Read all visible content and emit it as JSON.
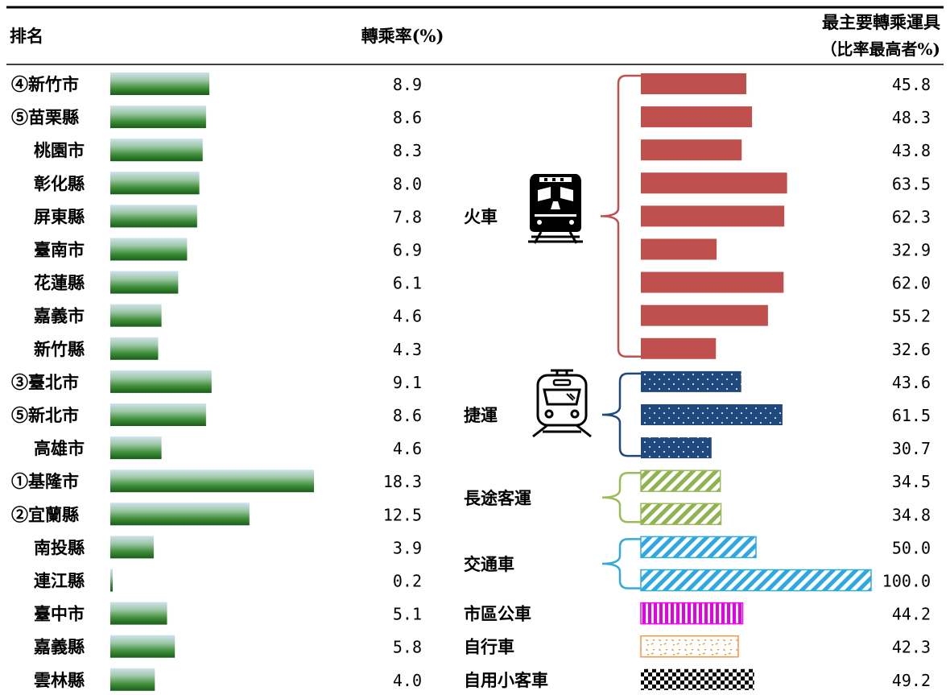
{
  "header": {
    "rank": "排名",
    "rate": "轉乘率(%)",
    "mode_line1": "最主要轉乘運具",
    "mode_line2": "（比率最高者%)"
  },
  "colors": {
    "train": "#c0504d",
    "mrt": "#1f497d",
    "bus": "#9bbb59",
    "shuttle": "#33aadd",
    "city_bus": "#ff00ff",
    "bicycle": "#f79646",
    "car": "#000000",
    "rate_bar_top": "#c7dde8",
    "rate_bar_bottom": "#1e6b1e"
  },
  "chart_data": [
    {
      "type": "bar",
      "orientation": "horizontal",
      "title": "",
      "ylabel": "排名",
      "xlabel": "轉乘率(%)",
      "categories": [
        "④新竹市",
        "⑤苗栗縣",
        "桃園市",
        "彰化縣",
        "屏東縣",
        "臺南市",
        "花蓮縣",
        "嘉義市",
        "新竹縣",
        "③臺北市",
        "⑤新北市",
        "高雄市",
        "①基隆市",
        "②宜蘭縣",
        "南投縣",
        "連江縣",
        "臺中市",
        "嘉義縣",
        "雲林縣"
      ],
      "values": [
        8.9,
        8.6,
        8.3,
        8.0,
        7.8,
        6.9,
        6.1,
        4.6,
        4.3,
        9.1,
        8.6,
        4.6,
        18.3,
        12.5,
        3.9,
        0.2,
        5.1,
        5.8,
        4.0
      ],
      "value_labels": [
        "8.9",
        "8.6",
        "8.3",
        "8.0",
        "7.8",
        "6.9",
        "6.1",
        "4.6",
        "4.3",
        "9.1",
        "8.6",
        "4.6",
        "18.3",
        "12.5",
        "3.9",
        "0.2",
        "5.1",
        "5.8",
        "4.0"
      ],
      "xlim": [
        0,
        18.3
      ],
      "grid": false
    },
    {
      "type": "bar",
      "orientation": "horizontal",
      "title": "最主要轉乘運具（比率最高者%)",
      "values": [
        45.8,
        48.3,
        43.8,
        63.5,
        62.3,
        32.9,
        62.0,
        55.2,
        32.6,
        43.6,
        61.5,
        30.7,
        34.5,
        34.8,
        50.0,
        100.0,
        44.2,
        42.3,
        49.2
      ],
      "value_labels": [
        "45.8",
        "48.3",
        "43.8",
        "63.5",
        "62.3",
        "32.9",
        "62.0",
        "55.2",
        "32.6",
        "43.6",
        "61.5",
        "30.7",
        "34.5",
        "34.8",
        "50.0",
        "100.0",
        "44.2",
        "42.3",
        "49.2"
      ],
      "groups": [
        {
          "name": "火車",
          "color_key": "train",
          "pattern": "solid",
          "icon": "train-icon",
          "rows": [
            0,
            1,
            2,
            3,
            4,
            5,
            6,
            7,
            8
          ]
        },
        {
          "name": "捷運",
          "color_key": "mrt",
          "pattern": "dots",
          "icon": "metro-icon",
          "rows": [
            9,
            10,
            11
          ]
        },
        {
          "name": "長途客運",
          "color_key": "bus",
          "pattern": "diagonal",
          "rows": [
            12,
            13
          ]
        },
        {
          "name": "交通車",
          "color_key": "shuttle",
          "pattern": "diagonal",
          "rows": [
            14,
            15
          ]
        },
        {
          "name": "市區公車",
          "color_key": "city_bus",
          "pattern": "vertical",
          "rows": [
            16
          ]
        },
        {
          "name": "自行車",
          "color_key": "bicycle",
          "pattern": "confetti",
          "rows": [
            17
          ]
        },
        {
          "name": "自用小客車",
          "color_key": "car",
          "pattern": "checker",
          "rows": [
            18
          ]
        }
      ],
      "xlim": [
        0,
        100
      ],
      "grid": false
    }
  ]
}
